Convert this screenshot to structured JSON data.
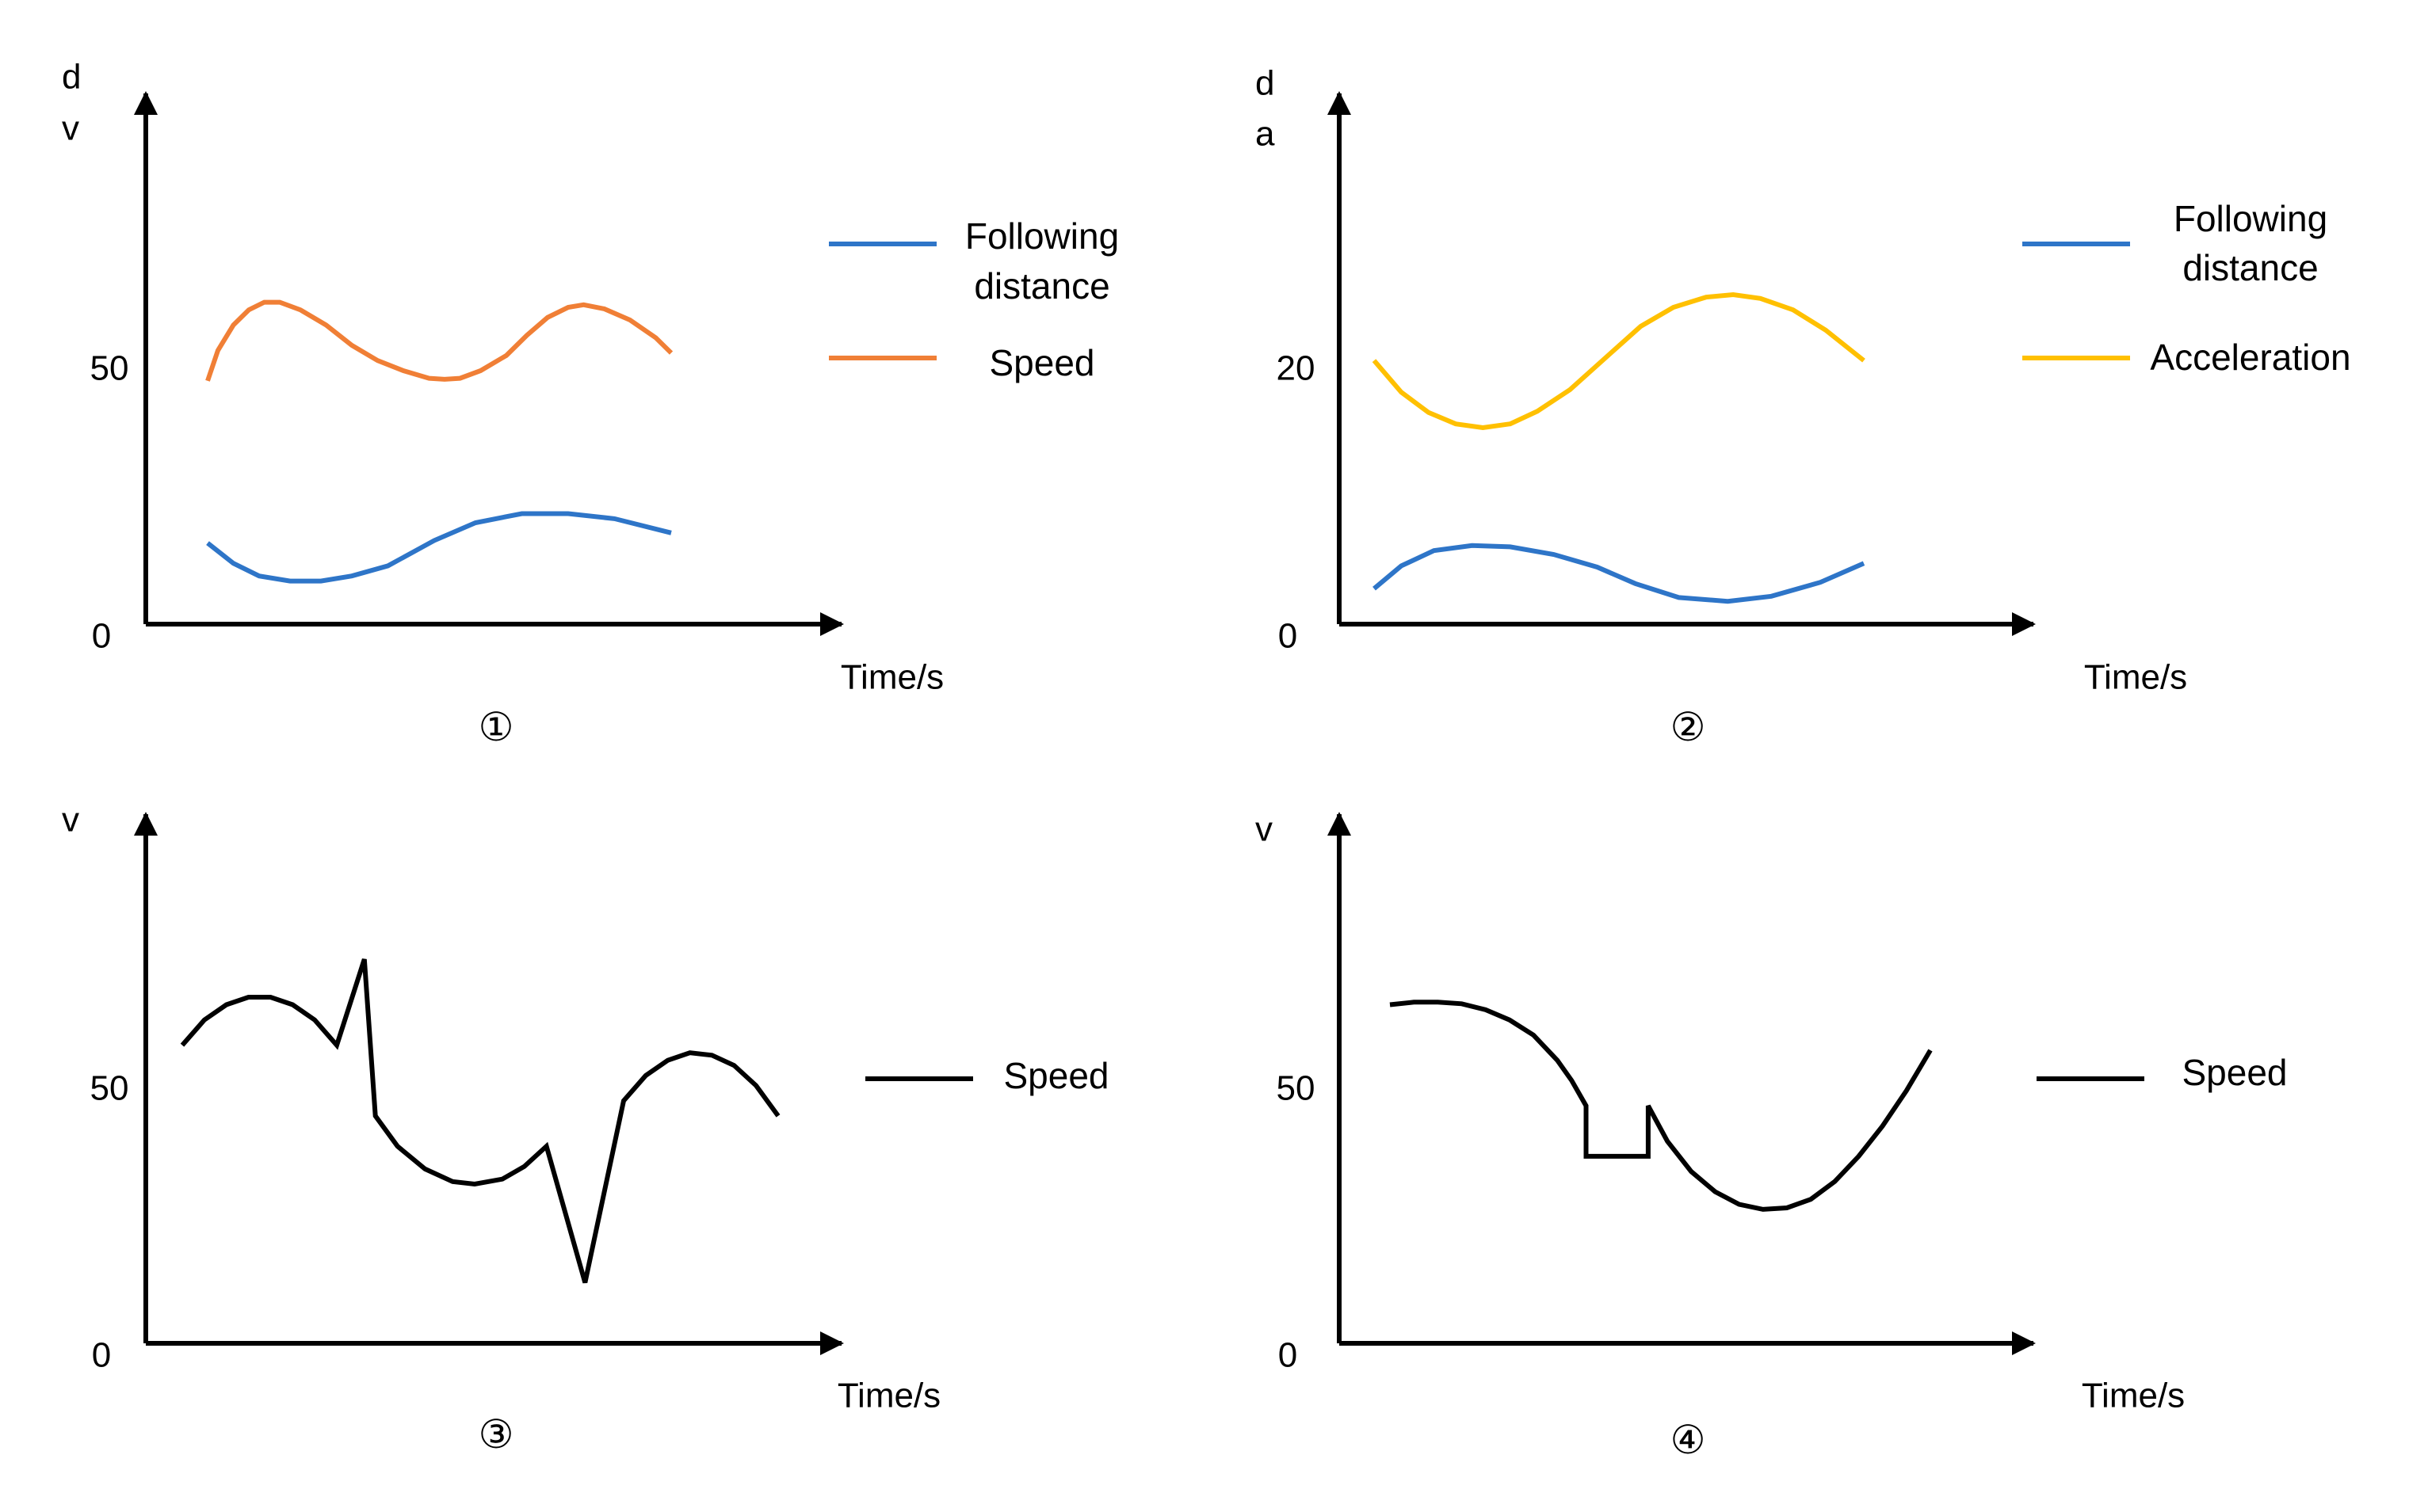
{
  "chart_data": [
    {
      "type": "line",
      "caption": "①",
      "y_axis_labels": [
        "d",
        "v"
      ],
      "xlabel": "Time/s",
      "ylim": [
        0,
        100
      ],
      "y_ticks": [
        {
          "value": 0,
          "label": "0"
        },
        {
          "value": 50,
          "label": "50"
        }
      ],
      "legend": "right",
      "series": [
        {
          "name": "Following distance",
          "legend_lines": [
            "Following",
            "distance"
          ],
          "color": "#2E75C8",
          "points": [
            [
              1,
              16
            ],
            [
              1.5,
              12
            ],
            [
              2,
              9.5
            ],
            [
              2.6,
              8.5
            ],
            [
              3.2,
              8.5
            ],
            [
              3.8,
              9.5
            ],
            [
              4.5,
              11.5
            ],
            [
              5.4,
              16.5
            ],
            [
              6.2,
              20
            ],
            [
              7.1,
              21.8
            ],
            [
              8,
              21.8
            ],
            [
              8.9,
              20.8
            ],
            [
              10,
              18
            ]
          ]
        },
        {
          "name": "Speed",
          "legend_lines": [
            "Speed"
          ],
          "color": "#F07F36",
          "points": [
            [
              1,
              48
            ],
            [
              1.2,
              54
            ],
            [
              1.5,
              59
            ],
            [
              1.8,
              62
            ],
            [
              2.1,
              63.5
            ],
            [
              2.4,
              63.5
            ],
            [
              2.8,
              62
            ],
            [
              3.3,
              59
            ],
            [
              3.8,
              55
            ],
            [
              4.3,
              52
            ],
            [
              4.8,
              50
            ],
            [
              5.3,
              48.5
            ],
            [
              5.6,
              48.3
            ],
            [
              5.9,
              48.5
            ],
            [
              6.3,
              50
            ],
            [
              6.8,
              53
            ],
            [
              7.2,
              57
            ],
            [
              7.6,
              60.5
            ],
            [
              8,
              62.5
            ],
            [
              8.3,
              63
            ],
            [
              8.7,
              62.2
            ],
            [
              9.2,
              60
            ],
            [
              9.7,
              56.5
            ],
            [
              10,
              53.5
            ]
          ]
        }
      ]
    },
    {
      "type": "line",
      "caption": "②",
      "y_axis_labels": [
        "d",
        "a"
      ],
      "xlabel": "Time/s",
      "ylim": [
        0,
        40
      ],
      "y_ticks": [
        {
          "value": 0,
          "label": "0"
        },
        {
          "value": 20,
          "label": "20"
        }
      ],
      "legend": "right",
      "series": [
        {
          "name": "Following distance",
          "legend_lines": [
            "Following",
            "distance"
          ],
          "color": "#2E75C8",
          "points": [
            [
              1,
              2.8
            ],
            [
              1.5,
              4.6
            ],
            [
              2.1,
              5.8
            ],
            [
              2.8,
              6.2
            ],
            [
              3.5,
              6.1
            ],
            [
              4.3,
              5.5
            ],
            [
              5.1,
              4.5
            ],
            [
              5.8,
              3.2
            ],
            [
              6.6,
              2.1
            ],
            [
              7.5,
              1.8
            ],
            [
              8.3,
              2.2
            ],
            [
              9.2,
              3.3
            ],
            [
              10,
              4.8
            ]
          ]
        },
        {
          "name": "Acceleration",
          "legend_lines": [
            "Acceleration"
          ],
          "color": "#FFC000",
          "points": [
            [
              1,
              20.8
            ],
            [
              1.5,
              18.3
            ],
            [
              2,
              16.7
            ],
            [
              2.5,
              15.8
            ],
            [
              3,
              15.5
            ],
            [
              3.5,
              15.8
            ],
            [
              4,
              16.8
            ],
            [
              4.6,
              18.5
            ],
            [
              5.3,
              21.2
            ],
            [
              5.9,
              23.5
            ],
            [
              6.5,
              25
            ],
            [
              7.1,
              25.8
            ],
            [
              7.6,
              26
            ],
            [
              8.1,
              25.7
            ],
            [
              8.7,
              24.8
            ],
            [
              9.3,
              23.2
            ],
            [
              10,
              20.8
            ]
          ]
        }
      ]
    },
    {
      "type": "line",
      "caption": "③",
      "y_axis_labels": [
        "v"
      ],
      "xlabel": "Time/s",
      "ylim": [
        0,
        100
      ],
      "y_ticks": [
        {
          "value": 0,
          "label": "0"
        },
        {
          "value": 50,
          "label": "50"
        }
      ],
      "legend": "right",
      "series": [
        {
          "name": "Speed",
          "legend_lines": [
            "Speed"
          ],
          "color": "#000000",
          "points": [
            [
              1,
              59
            ],
            [
              1.4,
              64
            ],
            [
              1.8,
              67
            ],
            [
              2.2,
              68.5
            ],
            [
              2.6,
              68.5
            ],
            [
              3,
              67
            ],
            [
              3.4,
              64
            ],
            [
              3.8,
              59
            ],
            [
              4.3,
              76
            ],
            [
              4.5,
              45
            ],
            [
              4.9,
              39
            ],
            [
              5.4,
              34.5
            ],
            [
              5.9,
              32
            ],
            [
              6.3,
              31.5
            ],
            [
              6.8,
              32.5
            ],
            [
              7.2,
              35
            ],
            [
              7.6,
              39
            ],
            [
              8.3,
              12
            ],
            [
              9,
              48
            ],
            [
              9.4,
              53
            ],
            [
              9.8,
              56
            ],
            [
              10.2,
              57.5
            ],
            [
              10.6,
              57
            ],
            [
              11,
              55
            ],
            [
              11.4,
              51
            ],
            [
              11.8,
              45
            ]
          ]
        }
      ]
    },
    {
      "type": "line",
      "caption": "④",
      "y_axis_labels": [
        "v"
      ],
      "xlabel": "Time/s",
      "ylim": [
        0,
        100
      ],
      "y_ticks": [
        {
          "value": 0,
          "label": "0"
        },
        {
          "value": 50,
          "label": "50"
        }
      ],
      "legend": "right",
      "series": [
        {
          "name": "Speed",
          "legend_lines": [
            "Speed"
          ],
          "color": "#000000",
          "points": [
            [
              1,
              67
            ],
            [
              1.5,
              67.5
            ],
            [
              2,
              67.5
            ],
            [
              2.5,
              67.2
            ],
            [
              3,
              66
            ],
            [
              3.5,
              64
            ],
            [
              4,
              61
            ],
            [
              4.5,
              56
            ],
            [
              4.8,
              52
            ],
            [
              5.1,
              47
            ],
            [
              5.1,
              37
            ],
            [
              6.4,
              37
            ],
            [
              6.4,
              47
            ],
            [
              6.8,
              40
            ],
            [
              7.3,
              34
            ],
            [
              7.8,
              30
            ],
            [
              8.3,
              27.5
            ],
            [
              8.8,
              26.5
            ],
            [
              9.3,
              26.8
            ],
            [
              9.8,
              28.5
            ],
            [
              10.3,
              32
            ],
            [
              10.8,
              37
            ],
            [
              11.3,
              43
            ],
            [
              11.8,
              50
            ],
            [
              12.3,
              58
            ]
          ]
        }
      ]
    }
  ]
}
